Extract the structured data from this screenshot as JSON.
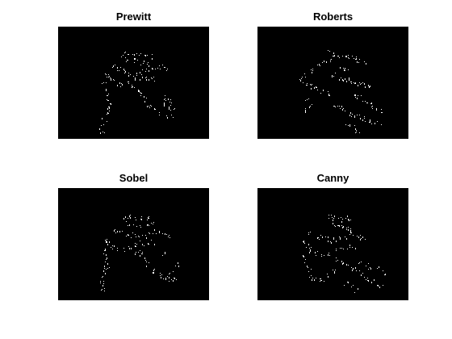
{
  "figure": {
    "subplots": [
      {
        "id": "prewitt",
        "title": "Prewitt",
        "image": "binary edge map"
      },
      {
        "id": "roberts",
        "title": "Roberts",
        "image": "binary edge map"
      },
      {
        "id": "sobel",
        "title": "Sobel",
        "image": "binary edge map"
      },
      {
        "id": "canny",
        "title": "Canny",
        "image": "binary edge map"
      }
    ],
    "colors": {
      "background": "#ffffff",
      "panel": "#000000",
      "edges": "#ffffff",
      "title": "#000000"
    }
  }
}
